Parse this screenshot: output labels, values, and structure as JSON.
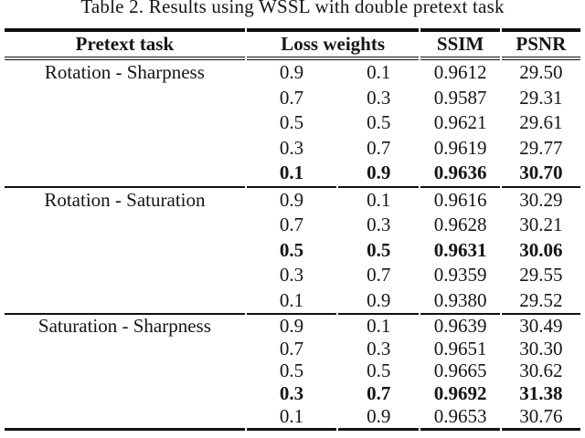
{
  "title": "Table 2. Results using WSSL with double pretext task",
  "colors": {
    "background": "#ffffff",
    "text": "#151515",
    "rule": "#101010"
  },
  "table": {
    "headers": {
      "pretext": "Pretext task",
      "loss_weights": "Loss weights",
      "ssim": "SSIM",
      "psnr": "PSNR"
    },
    "sections": [
      {
        "pretext_task": "Rotation - Sharpness",
        "rows": [
          {
            "w1": "0.9",
            "w2": "0.1",
            "ssim": "0.9612",
            "psnr": "29.50",
            "bold": false
          },
          {
            "w1": "0.7",
            "w2": "0.3",
            "ssim": "0.9587",
            "psnr": "29.31",
            "bold": false
          },
          {
            "w1": "0.5",
            "w2": "0.5",
            "ssim": "0.9621",
            "psnr": "29.61",
            "bold": false
          },
          {
            "w1": "0.3",
            "w2": "0.7",
            "ssim": "0.9619",
            "psnr": "29.77",
            "bold": false
          },
          {
            "w1": "0.1",
            "w2": "0.9",
            "ssim": "0.9636",
            "psnr": "30.70",
            "bold": true
          }
        ]
      },
      {
        "pretext_task": "Rotation - Saturation",
        "rows": [
          {
            "w1": "0.9",
            "w2": "0.1",
            "ssim": "0.9616",
            "psnr": "30.29",
            "bold": false
          },
          {
            "w1": "0.7",
            "w2": "0.3",
            "ssim": "0.9628",
            "psnr": "30.21",
            "bold": false
          },
          {
            "w1": "0.5",
            "w2": "0.5",
            "ssim": "0.9631",
            "psnr": "30.06",
            "bold": true
          },
          {
            "w1": "0.3",
            "w2": "0.7",
            "ssim": "0.9359",
            "psnr": "29.55",
            "bold": false
          },
          {
            "w1": "0.1",
            "w2": "0.9",
            "ssim": "0.9380",
            "psnr": "29.52",
            "bold": false
          }
        ]
      },
      {
        "pretext_task": "Saturation - Sharpness",
        "rows": [
          {
            "w1": "0.9",
            "w2": "0.1",
            "ssim": "0.9639",
            "psnr": "30.49",
            "bold": false
          },
          {
            "w1": "0.7",
            "w2": "0.3",
            "ssim": "0.9651",
            "psnr": "30.30",
            "bold": false
          },
          {
            "w1": "0.5",
            "w2": "0.5",
            "ssim": "0.9665",
            "psnr": "30.62",
            "bold": false
          },
          {
            "w1": "0.3",
            "w2": "0.7",
            "ssim": "0.9692",
            "psnr": "31.38",
            "bold": true
          },
          {
            "w1": "0.1",
            "w2": "0.9",
            "ssim": "0.9653",
            "psnr": "30.76",
            "bold": false
          }
        ]
      }
    ]
  }
}
